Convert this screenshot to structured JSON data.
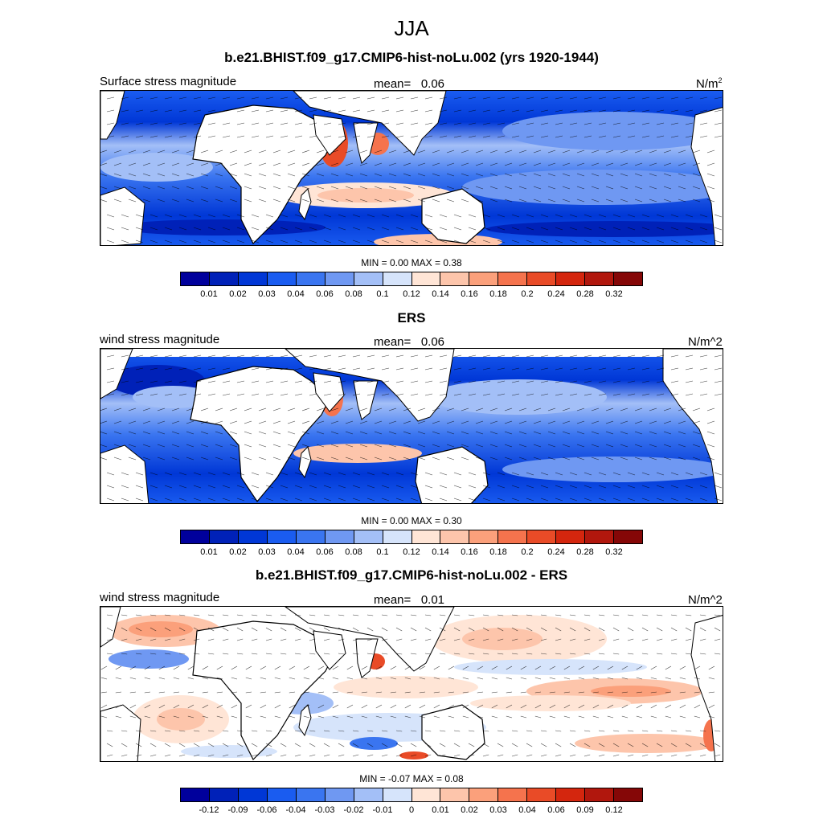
{
  "title": "JJA",
  "panels": [
    {
      "title": "b.e21.BHIST.f09_g17.CMIP6-hist-noLu.002 (yrs 1920-1944)",
      "left_label": "Surface stress magnitude",
      "mean_label": "mean=",
      "mean_value": "0.06",
      "units_base": "N/m",
      "units_sup": "2",
      "minmax": "MIN =   0.00 MAX =   0.38",
      "type": "abs"
    },
    {
      "title": "ERS",
      "left_label": "wind stress magnitude",
      "mean_label": "mean=",
      "mean_value": "0.06",
      "units_base": "N/m^2",
      "units_sup": "",
      "minmax": "MIN =   0.00 MAX =   0.30",
      "type": "abs"
    },
    {
      "title": "b.e21.BHIST.f09_g17.CMIP6-hist-noLu.002 - ERS",
      "left_label": "wind stress magnitude",
      "mean_label": "mean=",
      "mean_value": "0.01",
      "units_base": "N/m^2",
      "units_sup": "",
      "minmax": "MIN =  -0.07 MAX =   0.08",
      "type": "diff"
    }
  ],
  "colorbars": {
    "abs": {
      "ticks": [
        "0.01",
        "0.02",
        "0.03",
        "0.04",
        "0.06",
        "0.08",
        "0.1",
        "0.12",
        "0.14",
        "0.16",
        "0.18",
        "0.2",
        "0.24",
        "0.28",
        "0.32"
      ]
    },
    "diff": {
      "ticks": [
        "-0.12",
        "-0.09",
        "-0.06",
        "-0.04",
        "-0.03",
        "-0.02",
        "-0.01",
        "0",
        "0.01",
        "0.02",
        "0.03",
        "0.04",
        "0.06",
        "0.09",
        "0.12"
      ]
    },
    "colors": [
      "#00009c",
      "#0021b8",
      "#0037d6",
      "#1a5cf0",
      "#3a75f0",
      "#6f98f2",
      "#a3bff7",
      "#d6e4fb",
      "#ffe5d6",
      "#fdc5ab",
      "#fba07b",
      "#f5734d",
      "#e94b27",
      "#d4260e",
      "#b1170d",
      "#850707"
    ]
  }
}
